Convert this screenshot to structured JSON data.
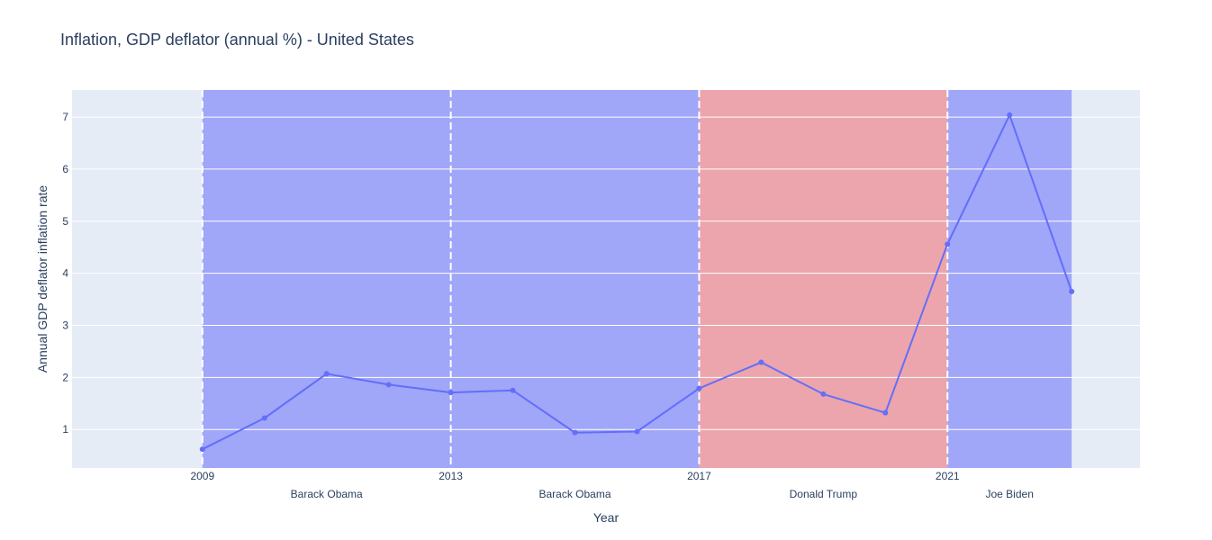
{
  "chart_data": {
    "type": "line",
    "title": "Inflation, GDP deflator (annual %) - United States",
    "xlabel": "Year",
    "ylabel": "Annual GDP deflator inflation rate",
    "xlim": [
      2006.9,
      2024.1
    ],
    "ylim": [
      0.26,
      7.52
    ],
    "xticks": [
      2009,
      2013,
      2017,
      2021
    ],
    "yticks": [
      1,
      2,
      3,
      4,
      5,
      6,
      7
    ],
    "grid": true,
    "colors": {
      "plot_bg": "#e5ecf6",
      "democrat": "#a0a6f8",
      "republican": "#eca5ac",
      "line": "#636efa",
      "text": "#2a3f5f"
    },
    "terms": [
      {
        "president": "Barack Obama",
        "start": 2009,
        "end": 2013,
        "party": "democrat"
      },
      {
        "president": "Barack Obama",
        "start": 2013,
        "end": 2017,
        "party": "democrat"
      },
      {
        "president": "Donald Trump",
        "start": 2017,
        "end": 2021,
        "party": "republican"
      },
      {
        "president": "Joe Biden",
        "start": 2021,
        "end": 2023,
        "party": "democrat"
      }
    ],
    "series": [
      {
        "x": [
          2009,
          2010,
          2011,
          2012,
          2013,
          2014,
          2015,
          2016,
          2017,
          2018,
          2019,
          2020,
          2021,
          2022,
          2023
        ],
        "values": [
          0.62,
          1.22,
          2.07,
          1.86,
          1.71,
          1.75,
          0.94,
          0.96,
          1.79,
          2.29,
          1.68,
          1.32,
          4.56,
          7.04,
          3.65
        ]
      }
    ]
  }
}
